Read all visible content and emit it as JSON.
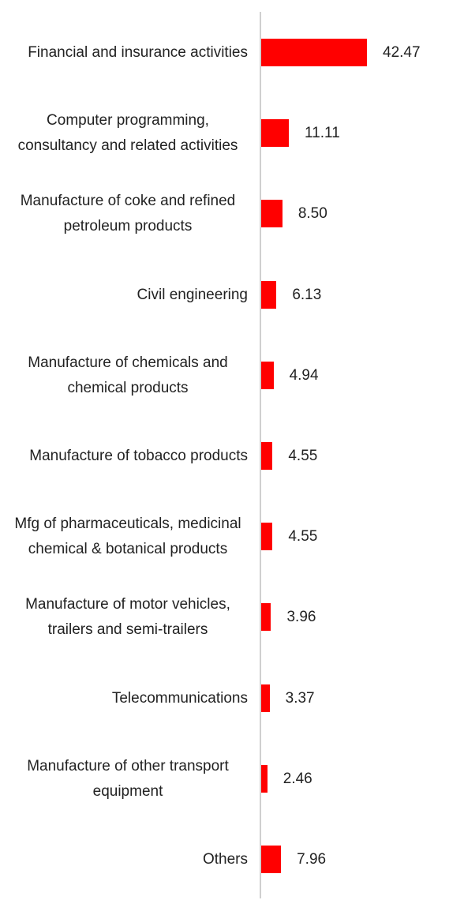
{
  "chart_data": {
    "type": "bar",
    "orientation": "horizontal",
    "color": "#ff0000",
    "categories": [
      "Financial and insurance activities",
      "Computer programming, consultancy and related activities",
      "Manufacture of coke and refined petroleum products",
      "Civil engineering",
      "Manufacture of chemicals and chemical products",
      "Manufacture of tobacco products",
      "Mfg of pharmaceuticals, medicinal chemical & botanical products",
      "Manufacture of motor vehicles, trailers and semi-trailers",
      "Telecommunications",
      "Manufacture of other transport equipment",
      "Others"
    ],
    "values": [
      42.47,
      11.11,
      8.5,
      6.13,
      4.94,
      4.55,
      4.55,
      3.96,
      3.37,
      2.46,
      7.96
    ],
    "value_labels": [
      "42.47",
      "11.11",
      "8.50",
      "6.13",
      "4.94",
      "4.55",
      "4.55",
      "3.96",
      "3.37",
      "2.46",
      "7.96"
    ]
  }
}
